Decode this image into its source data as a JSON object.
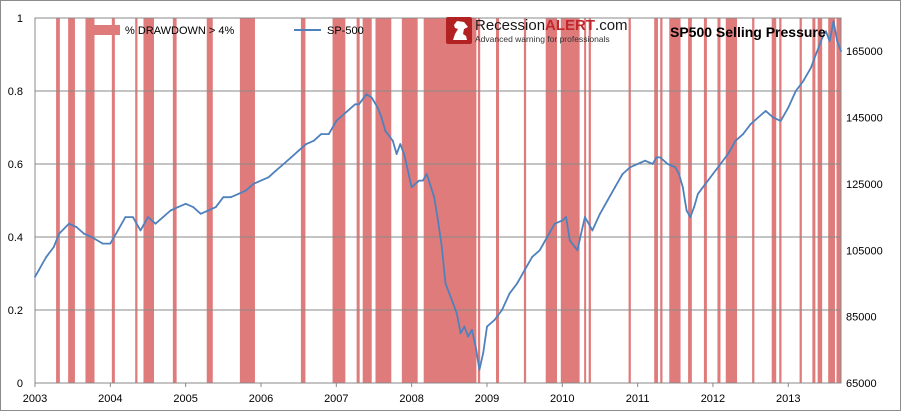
{
  "chart_data": {
    "type": "line",
    "title": "SP500 Selling Pressure",
    "logo": {
      "name_plain": "Recession",
      "name_bold": "ALERT",
      "suffix": ".com",
      "tagline": "Advanced warning for professionals"
    },
    "legend": {
      "placement": "top-left",
      "items": [
        {
          "label": "% DRAWDOWN > 4%",
          "kind": "band",
          "color": "#e07b7b"
        },
        {
          "label": "SP-500",
          "kind": "line",
          "color": "#4f81bd"
        }
      ]
    },
    "x_axis": {
      "range": [
        2003.0,
        2013.7
      ],
      "ticks": [
        2003,
        2004,
        2005,
        2006,
        2007,
        2008,
        2009,
        2010,
        2011,
        2012,
        2013
      ],
      "tick_labels": [
        "2003",
        "2004",
        "2005",
        "2006",
        "2007",
        "2008",
        "2009",
        "2010",
        "2011",
        "2012",
        "2013"
      ]
    },
    "y_left": {
      "range": [
        0,
        1
      ],
      "ticks": [
        0,
        0.2,
        0.4,
        0.6,
        0.8,
        1
      ],
      "tick_labels": [
        "0",
        "0.2",
        "0.4",
        "0.6",
        "0.8",
        "1"
      ],
      "grid": true
    },
    "y_right": {
      "range": [
        65000,
        175000
      ],
      "ticks": [
        65000,
        85000,
        105000,
        125000,
        145000,
        165000
      ],
      "tick_labels": [
        "65000",
        "85000",
        "105000",
        "125000",
        "145000",
        "165000"
      ]
    },
    "drawdown_periods": [
      [
        2003.28,
        2003.33
      ],
      [
        2003.44,
        2003.53
      ],
      [
        2003.67,
        2003.79
      ],
      [
        2004.02,
        2004.06
      ],
      [
        2004.33,
        2004.36
      ],
      [
        2004.44,
        2004.58
      ],
      [
        2004.83,
        2004.88
      ],
      [
        2005.28,
        2005.36
      ],
      [
        2005.72,
        2005.92
      ],
      [
        2006.53,
        2006.59
      ],
      [
        2006.95,
        2007.12
      ],
      [
        2007.27,
        2007.31
      ],
      [
        2007.35,
        2007.47
      ],
      [
        2007.52,
        2007.73
      ],
      [
        2007.87,
        2008.08
      ],
      [
        2008.16,
        2008.86
      ],
      [
        2008.88,
        2008.91
      ],
      [
        2009.12,
        2009.16
      ],
      [
        2009.49,
        2009.52
      ],
      [
        2009.78,
        2009.93
      ],
      [
        2009.98,
        2010.23
      ],
      [
        2010.29,
        2010.31
      ],
      [
        2010.35,
        2010.38
      ],
      [
        2010.88,
        2010.91
      ],
      [
        2011.22,
        2011.27
      ],
      [
        2011.3,
        2011.33
      ],
      [
        2011.42,
        2011.57
      ],
      [
        2011.67,
        2011.72
      ],
      [
        2011.88,
        2011.92
      ],
      [
        2012.06,
        2012.1
      ],
      [
        2012.17,
        2012.32
      ],
      [
        2012.52,
        2012.55
      ],
      [
        2012.78,
        2012.84
      ],
      [
        2012.88,
        2012.91
      ],
      [
        2013.15,
        2013.18
      ],
      [
        2013.32,
        2013.36
      ],
      [
        2013.39,
        2013.45
      ],
      [
        2013.53,
        2013.62
      ],
      [
        2013.64,
        2013.7
      ]
    ],
    "series": [
      {
        "name": "SP-500",
        "axis": "right",
        "x": [
          2003.0,
          2003.05,
          2003.1,
          2003.15,
          2003.25,
          2003.32,
          2003.45,
          2003.55,
          2003.65,
          2003.75,
          2003.9,
          2004.0,
          2004.1,
          2004.2,
          2004.3,
          2004.4,
          2004.5,
          2004.6,
          2004.7,
          2004.8,
          2004.9,
          2005.0,
          2005.1,
          2005.2,
          2005.3,
          2005.4,
          2005.5,
          2005.6,
          2005.7,
          2005.8,
          2005.9,
          2006.0,
          2006.1,
          2006.2,
          2006.3,
          2006.4,
          2006.5,
          2006.6,
          2006.7,
          2006.8,
          2006.9,
          2007.0,
          2007.05,
          2007.15,
          2007.25,
          2007.3,
          2007.4,
          2007.47,
          2007.55,
          2007.6,
          2007.65,
          2007.75,
          2007.8,
          2007.85,
          2007.9,
          2008.0,
          2008.1,
          2008.15,
          2008.2,
          2008.3,
          2008.35,
          2008.4,
          2008.45,
          2008.5,
          2008.55,
          2008.6,
          2008.65,
          2008.7,
          2008.75,
          2008.8,
          2008.85,
          2008.9,
          2008.95,
          2009.0,
          2009.1,
          2009.2,
          2009.3,
          2009.4,
          2009.5,
          2009.6,
          2009.7,
          2009.8,
          2009.9,
          2010.0,
          2010.05,
          2010.1,
          2010.2,
          2010.25,
          2010.3,
          2010.35,
          2010.4,
          2010.5,
          2010.6,
          2010.7,
          2010.8,
          2010.9,
          2011.0,
          2011.1,
          2011.2,
          2011.25,
          2011.3,
          2011.4,
          2011.5,
          2011.55,
          2011.6,
          2011.65,
          2011.7,
          2011.75,
          2011.8,
          2011.9,
          2012.0,
          2012.1,
          2012.2,
          2012.25,
          2012.3,
          2012.4,
          2012.5,
          2012.6,
          2012.7,
          2012.8,
          2012.9,
          2013.0,
          2013.1,
          2013.2,
          2013.3,
          2013.35,
          2013.4,
          2013.45,
          2013.5,
          2013.55,
          2013.6,
          2013.65,
          2013.7
        ],
        "y": [
          97000,
          99000,
          101000,
          103000,
          106000,
          110000,
          113000,
          112000,
          110000,
          109000,
          107000,
          107000,
          111000,
          115000,
          115000,
          111000,
          115000,
          113000,
          115000,
          117000,
          118000,
          119000,
          118000,
          116000,
          117000,
          118000,
          121000,
          121000,
          122000,
          123000,
          125000,
          126000,
          127000,
          129000,
          131000,
          133000,
          135000,
          137000,
          138000,
          140000,
          140000,
          144000,
          145000,
          147000,
          149000,
          149000,
          152000,
          151000,
          148000,
          145000,
          141000,
          138000,
          134000,
          137000,
          134000,
          124000,
          126000,
          126000,
          128000,
          121000,
          114000,
          106000,
          95000,
          92000,
          89000,
          86000,
          80000,
          82000,
          79000,
          81000,
          76000,
          69000,
          74000,
          82000,
          84000,
          87000,
          92000,
          95000,
          99000,
          103000,
          105000,
          109000,
          113000,
          114000,
          115000,
          108000,
          105000,
          110000,
          115000,
          113000,
          111000,
          116000,
          120000,
          124000,
          128000,
          130000,
          131000,
          132000,
          131000,
          133000,
          133000,
          131000,
          130000,
          128000,
          124000,
          117000,
          115000,
          118000,
          122000,
          125000,
          128000,
          131000,
          134000,
          136000,
          138000,
          140000,
          143000,
          145000,
          147000,
          145000,
          144000,
          148000,
          153000,
          156000,
          160000,
          163000,
          166000,
          169000,
          171000,
          168000,
          174000,
          168000,
          165000
        ]
      }
    ]
  }
}
